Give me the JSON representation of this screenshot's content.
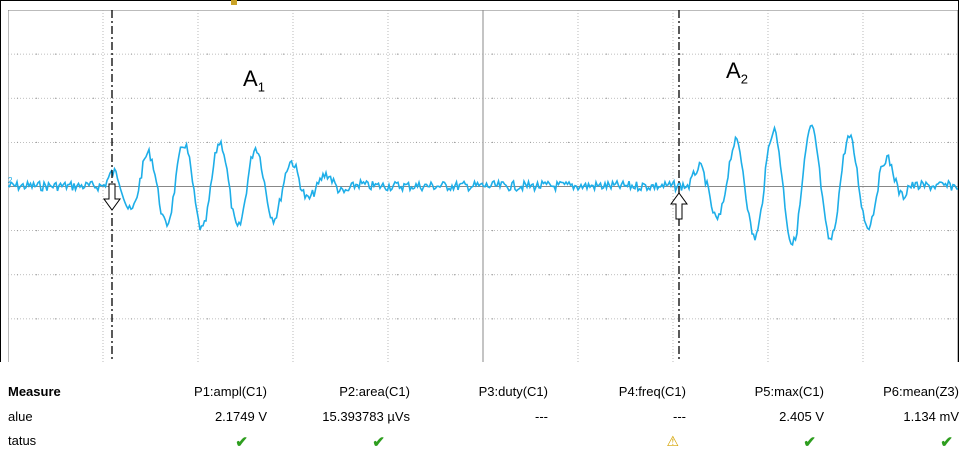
{
  "waveform_labels": {
    "a1": "A",
    "a1_sub": "1",
    "a2": "A",
    "a2_sub": "2"
  },
  "measure": {
    "headers": [
      "Measure",
      "P1:ampl(C1)",
      "P2:area(C1)",
      "P3:duty(C1)",
      "P4:freq(C1)",
      "P5:max(C1)",
      "P6:mean(Z3)"
    ],
    "value_label": "alue",
    "values": [
      "2.1749 V",
      "15.393783 µVs",
      "---",
      "---",
      "2.405 V",
      "1.134 mV"
    ],
    "status_label": "tatus",
    "status": [
      "ok",
      "ok",
      "none",
      "warning",
      "ok",
      "ok"
    ]
  },
  "colors": {
    "trace": "#1eaee8",
    "grid": "#777777",
    "cursor": "#000000",
    "ok": "#2e9e1f",
    "warning": "#d4a300"
  },
  "icons": {
    "ok": "✔",
    "warning": "⚠",
    "back": "←"
  }
}
